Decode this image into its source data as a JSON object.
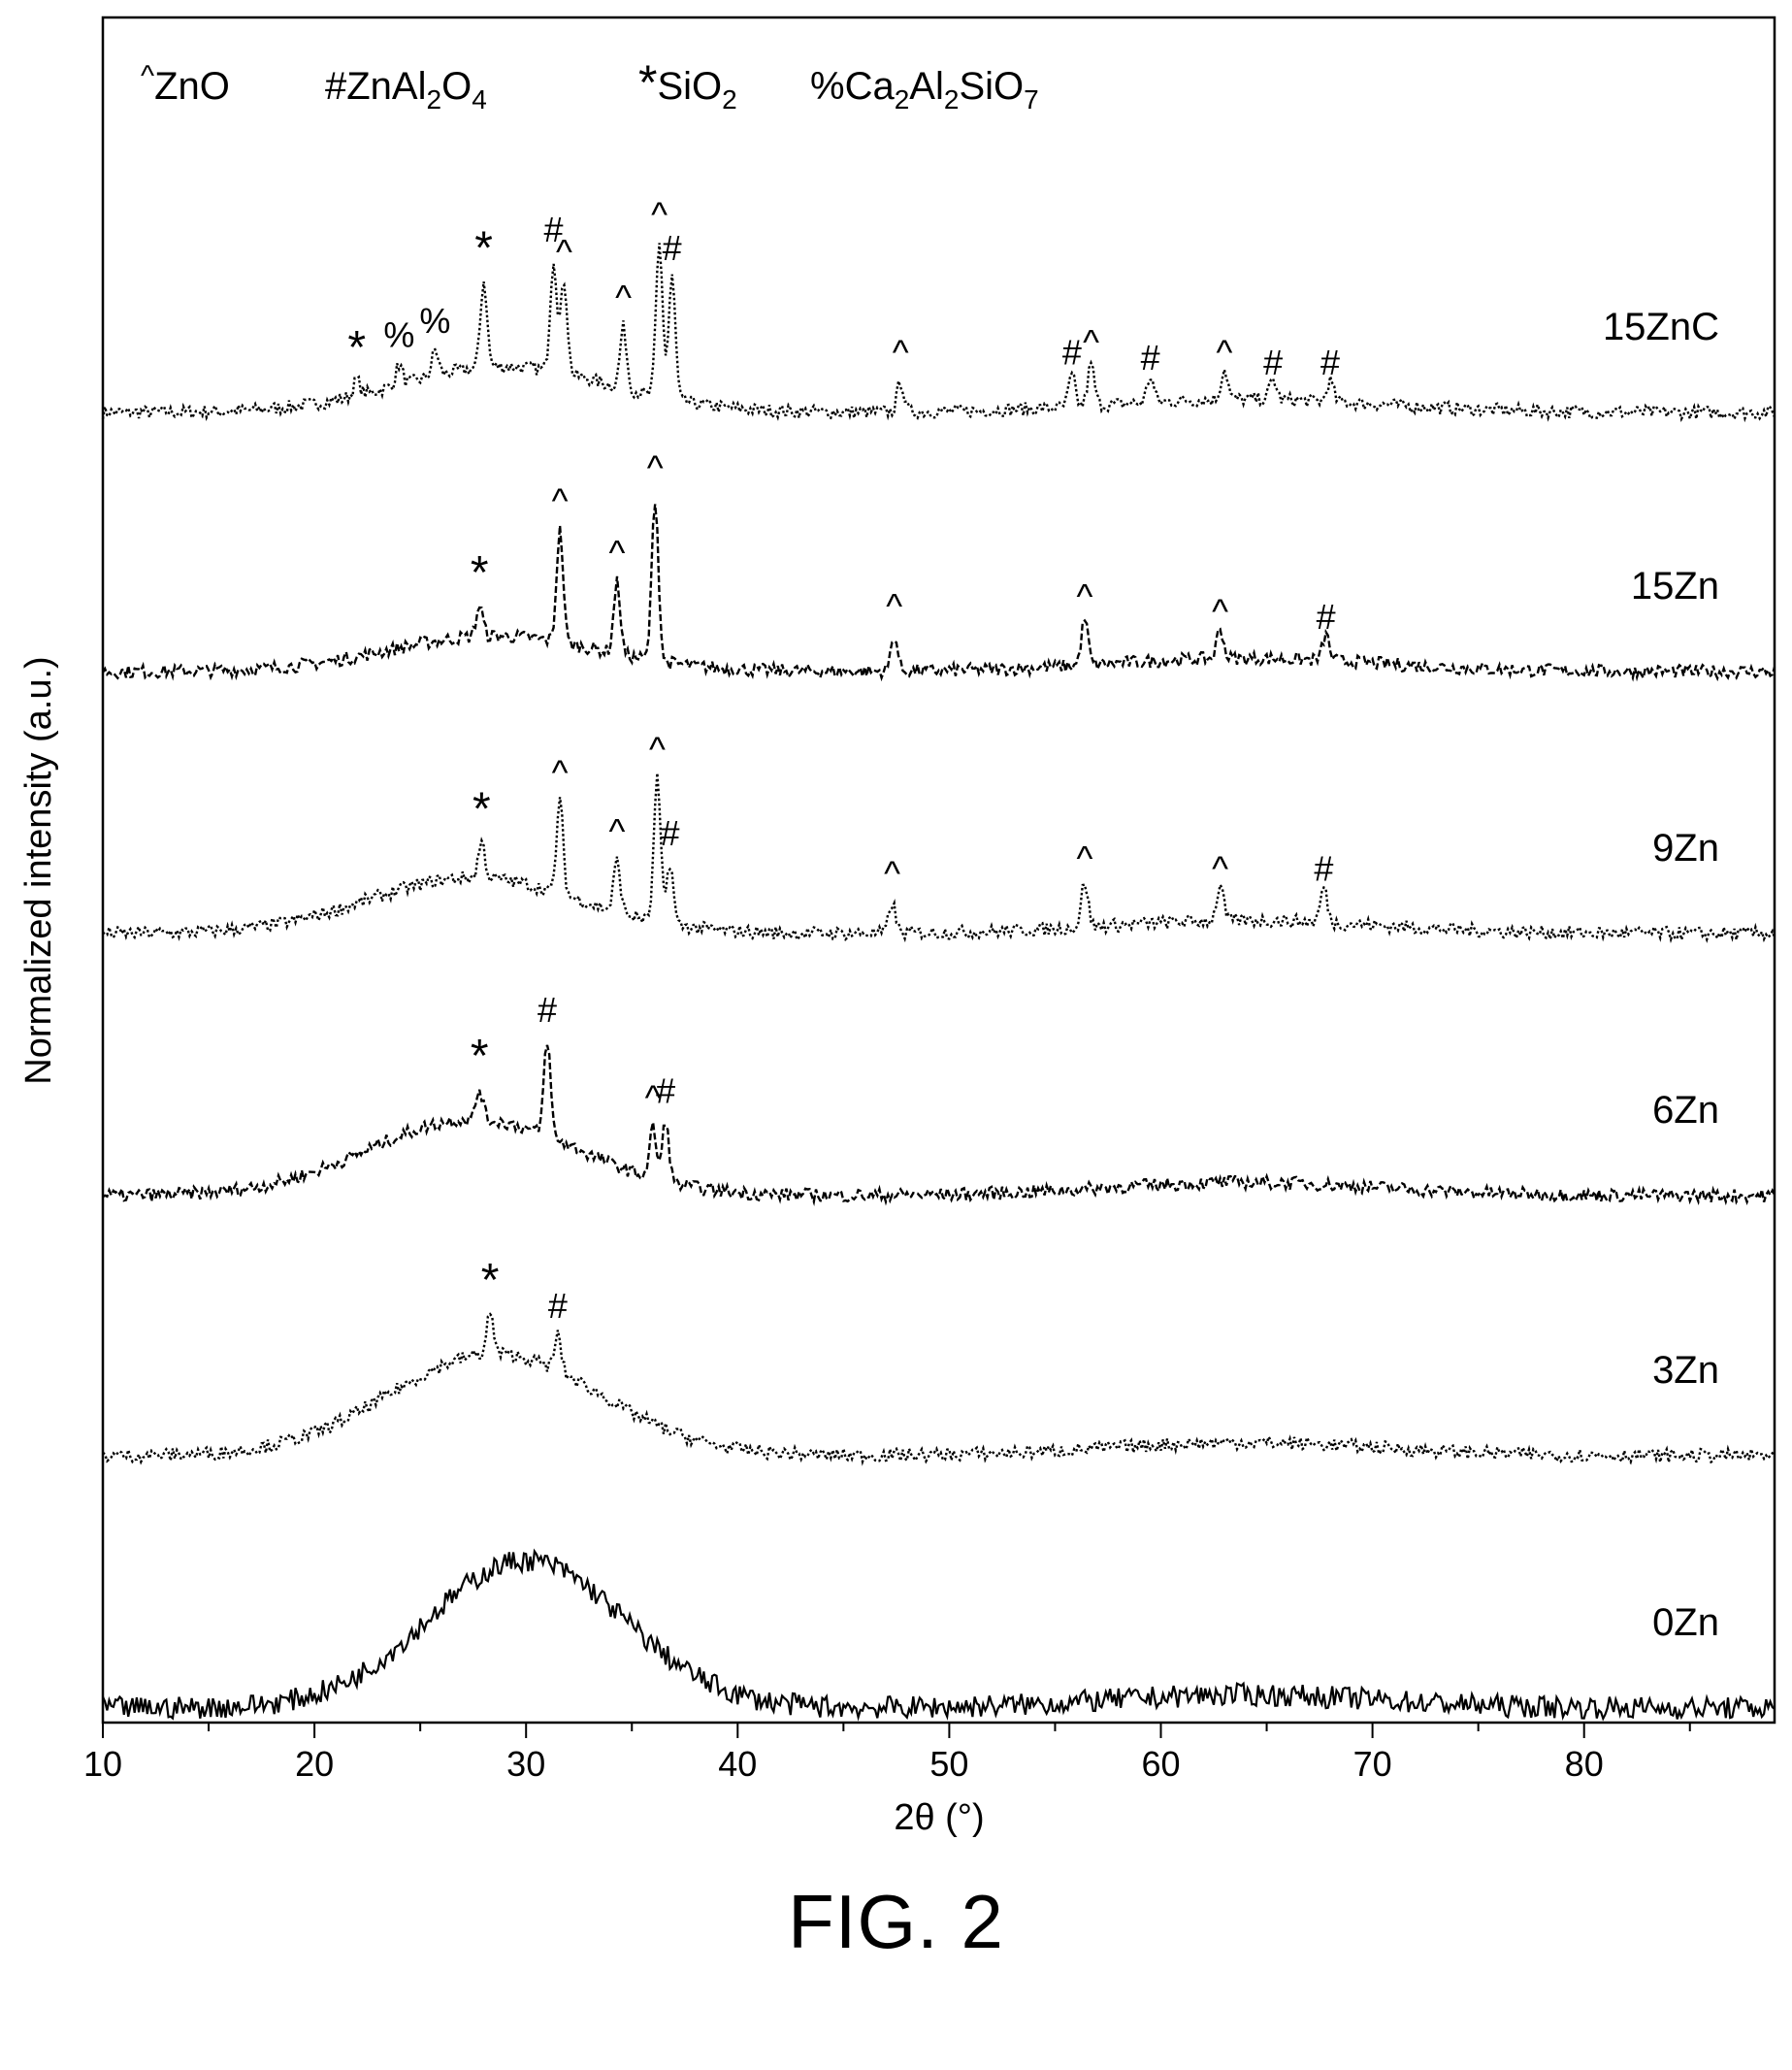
{
  "chart_data": {
    "type": "line",
    "xlabel": "2θ (°)",
    "ylabel": "Normalized intensity (a.u.)",
    "xlim": [
      10,
      89
    ],
    "x_ticks": [
      10,
      20,
      30,
      40,
      50,
      60,
      70,
      80
    ],
    "y_ticks_shown": false,
    "legend_entries": [
      {
        "marker": "^",
        "text": "ZnO"
      },
      {
        "marker": "#",
        "text": "ZnAl",
        "sub1": "2",
        "mid": "O",
        "sub2": "4"
      },
      {
        "marker": "*",
        "text": "SiO",
        "sub1": "2"
      },
      {
        "marker": "%",
        "text": "Ca",
        "sub1": "2",
        "mid": "Al",
        "sub2": "2",
        "tail": "SiO",
        "sub3": "7"
      }
    ],
    "series": [
      {
        "name": "15ZnC",
        "line": "dotted",
        "hump": {
          "center": 29,
          "width": 7,
          "height": 0.45
        },
        "peaks": [
          {
            "x": 22.0,
            "h": 0.15,
            "marker": "*"
          },
          {
            "x": 24.0,
            "h": 0.2,
            "marker": "%"
          },
          {
            "x": 25.7,
            "h": 0.25,
            "marker": "%"
          },
          {
            "x": 28.0,
            "h": 0.85,
            "marker": "*"
          },
          {
            "x": 31.3,
            "h": 1.1,
            "marker": "#"
          },
          {
            "x": 31.8,
            "h": 0.9,
            "marker": "^"
          },
          {
            "x": 34.6,
            "h": 0.6,
            "marker": "^"
          },
          {
            "x": 36.3,
            "h": 1.5,
            "marker": "^"
          },
          {
            "x": 36.9,
            "h": 1.2,
            "marker": "#"
          },
          {
            "x": 47.7,
            "h": 0.3,
            "marker": "^"
          },
          {
            "x": 55.8,
            "h": 0.3,
            "marker": "#"
          },
          {
            "x": 56.7,
            "h": 0.4,
            "marker": "^"
          },
          {
            "x": 59.5,
            "h": 0.25,
            "marker": "#"
          },
          {
            "x": 63.0,
            "h": 0.3,
            "marker": "^"
          },
          {
            "x": 65.3,
            "h": 0.2,
            "marker": "#"
          },
          {
            "x": 68.0,
            "h": 0.2,
            "marker": "#"
          }
        ]
      },
      {
        "name": "15Zn",
        "line": "dashed",
        "hump": {
          "center": 28.5,
          "width": 7,
          "height": 0.35
        },
        "peaks": [
          {
            "x": 27.8,
            "h": 0.3,
            "marker": "*"
          },
          {
            "x": 31.6,
            "h": 1.1,
            "marker": "^"
          },
          {
            "x": 34.3,
            "h": 0.7,
            "marker": "^"
          },
          {
            "x": 36.1,
            "h": 1.6,
            "marker": "^"
          },
          {
            "x": 47.4,
            "h": 0.35,
            "marker": "^"
          },
          {
            "x": 56.4,
            "h": 0.45,
            "marker": "^"
          },
          {
            "x": 62.8,
            "h": 0.3,
            "marker": "^"
          },
          {
            "x": 67.8,
            "h": 0.25,
            "marker": "#"
          }
        ]
      },
      {
        "name": "9Zn",
        "line": "dotted",
        "hump": {
          "center": 27.5,
          "width": 7,
          "height": 0.55
        },
        "peaks": [
          {
            "x": 27.9,
            "h": 0.35,
            "marker": "*"
          },
          {
            "x": 31.6,
            "h": 0.9,
            "marker": "^"
          },
          {
            "x": 34.3,
            "h": 0.5,
            "marker": "^"
          },
          {
            "x": 36.2,
            "h": 1.4,
            "marker": "^"
          },
          {
            "x": 36.8,
            "h": 0.6,
            "marker": "#"
          },
          {
            "x": 47.3,
            "h": 0.3,
            "marker": "^"
          },
          {
            "x": 56.4,
            "h": 0.45,
            "marker": "^"
          },
          {
            "x": 62.8,
            "h": 0.35,
            "marker": "^"
          },
          {
            "x": 67.7,
            "h": 0.35,
            "marker": "#"
          }
        ]
      },
      {
        "name": "6Zn",
        "line": "dashed",
        "hump": {
          "center": 27.5,
          "width": 7,
          "height": 0.75
        },
        "peaks": [
          {
            "x": 27.8,
            "h": 0.3,
            "marker": "*"
          },
          {
            "x": 31.0,
            "h": 0.95,
            "marker": "#"
          },
          {
            "x": 36.0,
            "h": 0.5,
            "marker": "^"
          },
          {
            "x": 36.6,
            "h": 0.6,
            "marker": "#"
          }
        ]
      },
      {
        "name": "3Zn",
        "line": "dotted",
        "hump": {
          "center": 28.5,
          "width": 7,
          "height": 1.0
        },
        "peaks": [
          {
            "x": 28.3,
            "h": 0.4,
            "marker": "*"
          },
          {
            "x": 31.5,
            "h": 0.35,
            "marker": "#"
          }
        ]
      },
      {
        "name": "0Zn",
        "line": "solid",
        "hump": {
          "center": 30,
          "width": 6.5,
          "height": 1.45
        },
        "peaks": []
      }
    ]
  },
  "figure": {
    "caption": "FIG. 2"
  },
  "colors": {
    "line": "#000000",
    "background": "#ffffff"
  }
}
